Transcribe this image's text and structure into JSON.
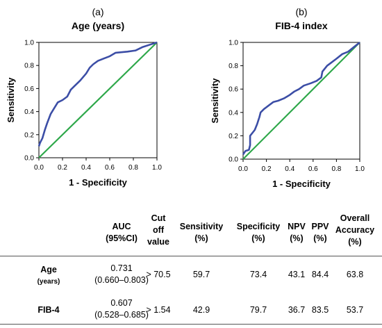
{
  "chart_data": [
    {
      "type": "line",
      "panel": "(a)",
      "title": "Age (years)",
      "xlabel": "1 - Specificity",
      "ylabel": "Sensitivity",
      "xlim": [
        0,
        1
      ],
      "ylim": [
        0,
        1
      ],
      "xticks": [
        "0.0",
        "0.2",
        "0.4",
        "0.6",
        "0.8",
        "1.0"
      ],
      "yticks": [
        "0.0",
        "0.2",
        "0.4",
        "0.6",
        "0.8",
        "1.0"
      ],
      "grid": false,
      "series": [
        {
          "role": "roc",
          "color": "#3c4ea6",
          "x": [
            0,
            0.01,
            0.03,
            0.05,
            0.07,
            0.1,
            0.13,
            0.16,
            0.2,
            0.24,
            0.27,
            0.3,
            0.35,
            0.4,
            0.43,
            0.46,
            0.5,
            0.55,
            0.6,
            0.65,
            0.75,
            0.82,
            0.88,
            0.94,
            1.0
          ],
          "y": [
            0.1,
            0.13,
            0.17,
            0.24,
            0.3,
            0.38,
            0.43,
            0.48,
            0.5,
            0.53,
            0.59,
            0.62,
            0.67,
            0.73,
            0.78,
            0.81,
            0.84,
            0.86,
            0.88,
            0.91,
            0.92,
            0.93,
            0.96,
            0.98,
            1.0
          ]
        },
        {
          "role": "reference",
          "color": "#2ea84a",
          "x": [
            0,
            1
          ],
          "y": [
            0,
            1
          ]
        }
      ]
    },
    {
      "type": "line",
      "panel": "(b)",
      "title": "FIB-4 index",
      "xlabel": "1 - Specificity",
      "ylabel": "Sensitivity",
      "xlim": [
        0,
        1
      ],
      "ylim": [
        0,
        1
      ],
      "xticks": [
        "0.0",
        "0.2",
        "0.4",
        "0.6",
        "0.8",
        "1.0"
      ],
      "yticks": [
        "0.0",
        "0.2",
        "0.4",
        "0.6",
        "0.8",
        "1.0"
      ],
      "grid": false,
      "series": [
        {
          "role": "roc",
          "color": "#3c4ea6",
          "x": [
            0,
            0.02,
            0.05,
            0.06,
            0.06,
            0.1,
            0.12,
            0.13,
            0.14,
            0.15,
            0.18,
            0.22,
            0.26,
            0.3,
            0.35,
            0.4,
            0.44,
            0.48,
            0.52,
            0.58,
            0.63,
            0.67,
            0.68,
            0.72,
            0.76,
            0.8,
            0.85,
            0.9,
            0.95,
            1.0
          ],
          "y": [
            0.04,
            0.07,
            0.08,
            0.12,
            0.2,
            0.25,
            0.3,
            0.33,
            0.36,
            0.4,
            0.43,
            0.46,
            0.49,
            0.5,
            0.52,
            0.55,
            0.58,
            0.6,
            0.63,
            0.65,
            0.67,
            0.7,
            0.75,
            0.8,
            0.83,
            0.86,
            0.9,
            0.92,
            0.96,
            1.0
          ]
        },
        {
          "role": "reference",
          "color": "#2ea84a",
          "x": [
            0,
            1
          ],
          "y": [
            0,
            1
          ]
        }
      ]
    }
  ],
  "table": {
    "headers": {
      "auc": [
        "AUC",
        "(95%CI)"
      ],
      "cutoff": [
        "Cut",
        "off",
        "value"
      ],
      "sensitivity": [
        "Sensitivity",
        "(%)"
      ],
      "specificity": [
        "Specificity",
        "(%)"
      ],
      "npv": [
        "NPV",
        "(%)"
      ],
      "ppv": [
        "PPV",
        "(%)"
      ],
      "accuracy": [
        "Overall",
        "Accuracy",
        "(%)"
      ]
    },
    "rows": [
      {
        "label": "Age",
        "sublabel": "(years)",
        "auc": "0.731",
        "ci": "(0.660–0.803)",
        "cutoff": "> 70.5",
        "sensitivity": "59.7",
        "specificity": "73.4",
        "npv": "43.1",
        "ppv": "84.4",
        "accuracy": "63.8"
      },
      {
        "label": "FIB-4",
        "sublabel": "",
        "auc": "0.607",
        "ci": "(0.528–0.685)",
        "cutoff": "> 1.54",
        "sensitivity": "42.9",
        "specificity": "79.7",
        "npv": "36.7",
        "ppv": "83.5",
        "accuracy": "53.7"
      }
    ]
  }
}
